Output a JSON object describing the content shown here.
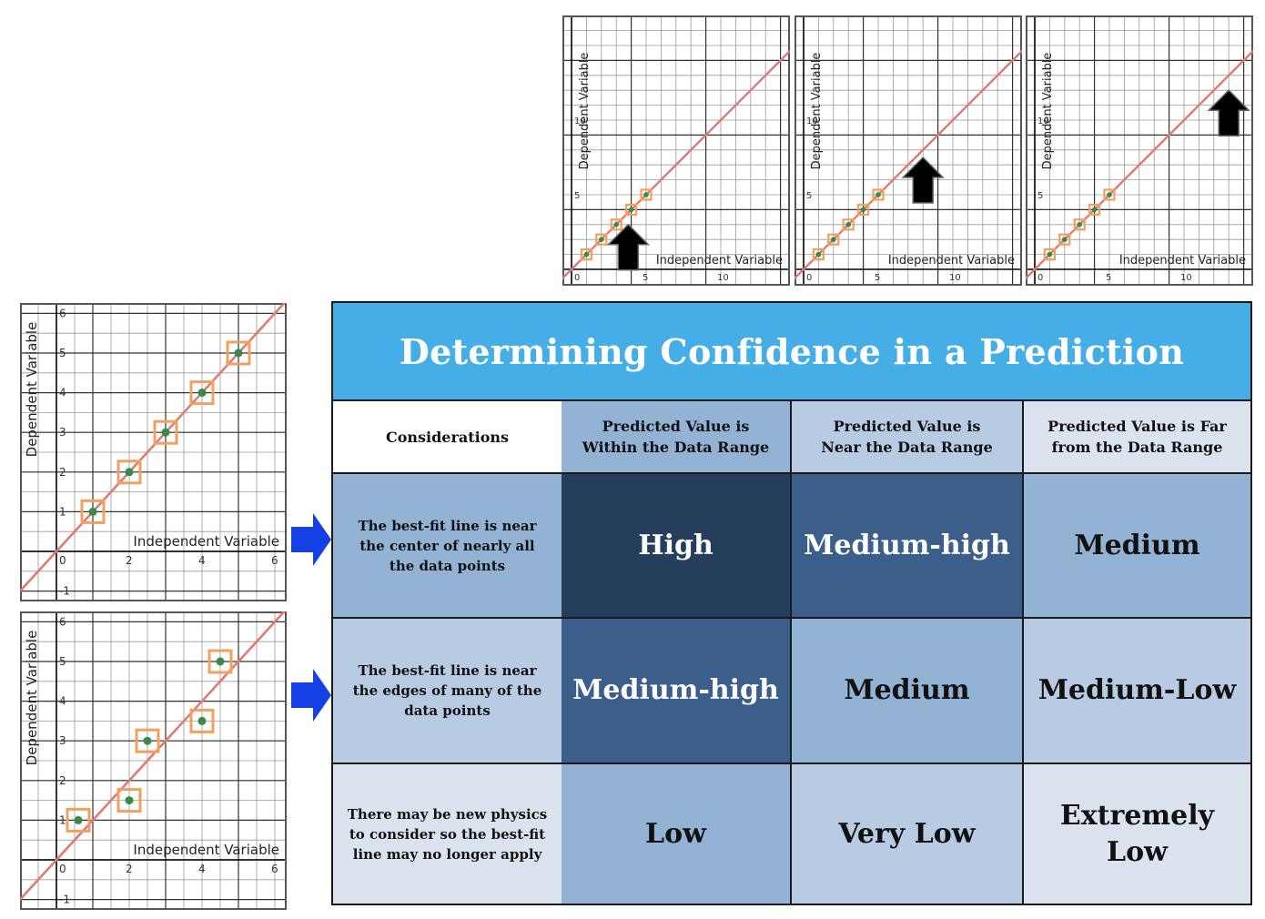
{
  "top_plots": [
    {
      "y_label": "Dependent Variable",
      "x_label": "Independent Variable",
      "x_ticks": [
        "0",
        "5",
        "10"
      ],
      "y_ticks": [
        "5",
        "10"
      ],
      "points": [
        [
          1,
          1
        ],
        [
          2,
          2
        ],
        [
          3,
          3
        ],
        [
          4,
          4
        ],
        [
          5,
          5
        ]
      ],
      "line": "y = x",
      "arrow_at": [
        3.8,
        3.0
      ]
    },
    {
      "y_label": "Dependent Variable",
      "x_label": "Independent Variable",
      "x_ticks": [
        "0",
        "5",
        "10"
      ],
      "y_ticks": [
        "5",
        "10"
      ],
      "points": [
        [
          1,
          1
        ],
        [
          2,
          2
        ],
        [
          3,
          3
        ],
        [
          4,
          4
        ],
        [
          5,
          5
        ]
      ],
      "line": "y = x",
      "arrow_at": [
        8.0,
        7.5
      ]
    },
    {
      "y_label": "Dependent Variable",
      "x_label": "Independent Variable",
      "x_ticks": [
        "0",
        "5",
        "10"
      ],
      "y_ticks": [
        "5",
        "10"
      ],
      "points": [
        [
          1,
          1
        ],
        [
          2,
          2
        ],
        [
          3,
          3
        ],
        [
          4,
          4
        ],
        [
          5,
          5
        ]
      ],
      "line": "y = x",
      "arrow_at": [
        13.0,
        12.0
      ]
    }
  ],
  "left_plots": [
    {
      "y_label": "Dependent Variable",
      "x_label": "Independent Variable",
      "x_ticks": [
        "0",
        "2",
        "4",
        "6"
      ],
      "y_ticks": [
        "-1",
        "1",
        "2",
        "3",
        "4",
        "5",
        "6"
      ],
      "points": [
        [
          1,
          1
        ],
        [
          2,
          2
        ],
        [
          3,
          3
        ],
        [
          4,
          4
        ],
        [
          5,
          5
        ]
      ],
      "line": "y = x"
    },
    {
      "y_label": "Dependent Variable",
      "x_label": "Independent Variable",
      "x_ticks": [
        "0",
        "2",
        "4",
        "6"
      ],
      "y_ticks": [
        "-1",
        "1",
        "2",
        "3",
        "4",
        "5",
        "6"
      ],
      "points": [
        [
          0.6,
          1
        ],
        [
          2,
          1.5
        ],
        [
          2.5,
          3
        ],
        [
          4,
          3.5
        ],
        [
          4.5,
          5
        ]
      ],
      "line": "y = x"
    }
  ],
  "table": {
    "title": "Determining Confidence in a Prediction",
    "headers": [
      "Considerations",
      "Predicted Value is Within the Data Range",
      "Predicted Value is Near the Data Range",
      "Predicted Value is Far from the Data Range"
    ],
    "rows": [
      {
        "consideration": "The best-fit line is near the center of nearly all the data points",
        "values": [
          "High",
          "Medium-high",
          "Medium"
        ]
      },
      {
        "consideration": "The best-fit line is near the edges of many of the data points",
        "values": [
          "Medium-high",
          "Medium",
          "Medium-Low"
        ]
      },
      {
        "consideration": "There may be new physics to consider so the best-fit line may no longer apply",
        "values": [
          "Low",
          "Very Low",
          "Extremely Low"
        ]
      }
    ]
  },
  "colors": {
    "title_bg": "#45aee6",
    "dark_navy": "#253e5c",
    "mid_navy": "#3b5f8a",
    "mid_blue": "#93b3d5",
    "light_blue": "#b7cbe2",
    "pale_blue": "#dbe3ee",
    "fit_line": "#e07b72",
    "marker_box": "#f0a060",
    "point": "#3a8a4a",
    "pointer_arrow": "#1540e6"
  }
}
